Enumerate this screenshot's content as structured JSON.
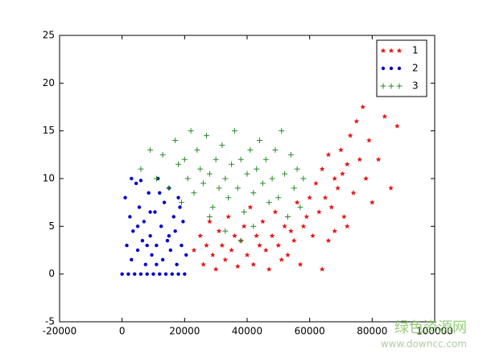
{
  "chart_data": {
    "type": "scatter",
    "xlim": [
      -20000,
      100000
    ],
    "xticks": [
      -20000,
      0,
      20000,
      40000,
      60000,
      80000,
      100000
    ],
    "ylim": [
      -5,
      25
    ],
    "yticks": [
      -5,
      0,
      5,
      10,
      15,
      20,
      25
    ],
    "legend": "upper right",
    "series": [
      {
        "name": "1",
        "color": "#e31a1c",
        "marker": "*",
        "x": [
          23000,
          25000,
          26000,
          27000,
          28000,
          29000,
          30000,
          31000,
          32000,
          33000,
          34000,
          35000,
          36000,
          37000,
          38000,
          39000,
          40000,
          41000,
          42000,
          43000,
          44000,
          45000,
          46000,
          47000,
          48000,
          49000,
          50000,
          51000,
          52000,
          53000,
          54000,
          55000,
          56000,
          57000,
          58000,
          59000,
          60000,
          61000,
          62000,
          63000,
          64000,
          65000,
          66000,
          67000,
          68000,
          69000,
          70000,
          70500,
          71000,
          72000,
          73000,
          74000,
          75000,
          76000,
          77000,
          78000,
          79000,
          80000,
          82000,
          84000,
          86000,
          88000,
          66000,
          64000,
          68000,
          72000
        ],
        "values": [
          2.5,
          4,
          1,
          3,
          5.5,
          2,
          0.5,
          4.5,
          3,
          1.5,
          6,
          2.5,
          4,
          0.8,
          3.5,
          5,
          2,
          7,
          1,
          4,
          3,
          5.5,
          2.5,
          0.5,
          4,
          6.5,
          3,
          1.5,
          5,
          2,
          4.5,
          3.5,
          7.5,
          1,
          5,
          6,
          8,
          4,
          9.5,
          6.5,
          11,
          8,
          12.5,
          7,
          10,
          9,
          13,
          10.5,
          6,
          11.5,
          14.5,
          8.5,
          16,
          12,
          17.5,
          10,
          14,
          7.5,
          12,
          16.5,
          9,
          15.5,
          3.5,
          0.5,
          4.5,
          5
        ]
      },
      {
        "name": "2",
        "color": "#0000cc",
        "marker": ".",
        "x": [
          0,
          1000,
          1500,
          2000,
          2500,
          3000,
          3500,
          4000,
          4500,
          5000,
          5500,
          6000,
          6500,
          7000,
          7500,
          8000,
          8500,
          9000,
          9500,
          10000,
          10500,
          11000,
          11500,
          12000,
          12500,
          13000,
          13500,
          14000,
          14500,
          15000,
          15500,
          16000,
          16500,
          17000,
          17500,
          18000,
          18500,
          19000,
          19500,
          20000,
          20500,
          3000,
          6000,
          9000,
          12000,
          15000,
          18000,
          5000,
          8000,
          11000
        ],
        "values": [
          0,
          8,
          3,
          0,
          6,
          1.5,
          4.5,
          0,
          9.5,
          2.5,
          7,
          0,
          3.5,
          5.5,
          1,
          0,
          8.5,
          4,
          2,
          0,
          6.5,
          3,
          10,
          0,
          5,
          1.5,
          7.5,
          0,
          3.5,
          9,
          2.5,
          0,
          6,
          4.5,
          1,
          0,
          7,
          3,
          5.5,
          0,
          2,
          10,
          9.8,
          6.5,
          8.5,
          4,
          8,
          5,
          3,
          1
        ]
      },
      {
        "name": "3",
        "color": "#2a8a2a",
        "marker": "+",
        "x": [
          6000,
          9000,
          11000,
          13000,
          15000,
          17000,
          18000,
          19000,
          20000,
          21000,
          22000,
          23000,
          24000,
          25000,
          26000,
          27000,
          28000,
          29000,
          30000,
          31000,
          32000,
          33000,
          34000,
          35000,
          36000,
          37000,
          38000,
          39000,
          40000,
          41000,
          42000,
          43000,
          44000,
          45000,
          46000,
          47000,
          48000,
          49000,
          50000,
          51000,
          52000,
          53000,
          54000,
          55000,
          56000,
          57000,
          58000,
          33000,
          28000,
          38000,
          42000
        ],
        "values": [
          11,
          13,
          10,
          12.5,
          9,
          14,
          11.5,
          7.5,
          12,
          10,
          15,
          8.5,
          13,
          11,
          9.5,
          14.5,
          10.5,
          7,
          12,
          9,
          13.5,
          10,
          8,
          11.5,
          15,
          9,
          12,
          6.5,
          10.5,
          13,
          8.5,
          11,
          14,
          9.5,
          12,
          7.5,
          10,
          13,
          8,
          15,
          10.5,
          6,
          12.5,
          9,
          11,
          7,
          10,
          4.5,
          6,
          3.5,
          5
        ]
      }
    ]
  },
  "watermark": [
    "绿色资源网",
    "www.downcc.com"
  ]
}
